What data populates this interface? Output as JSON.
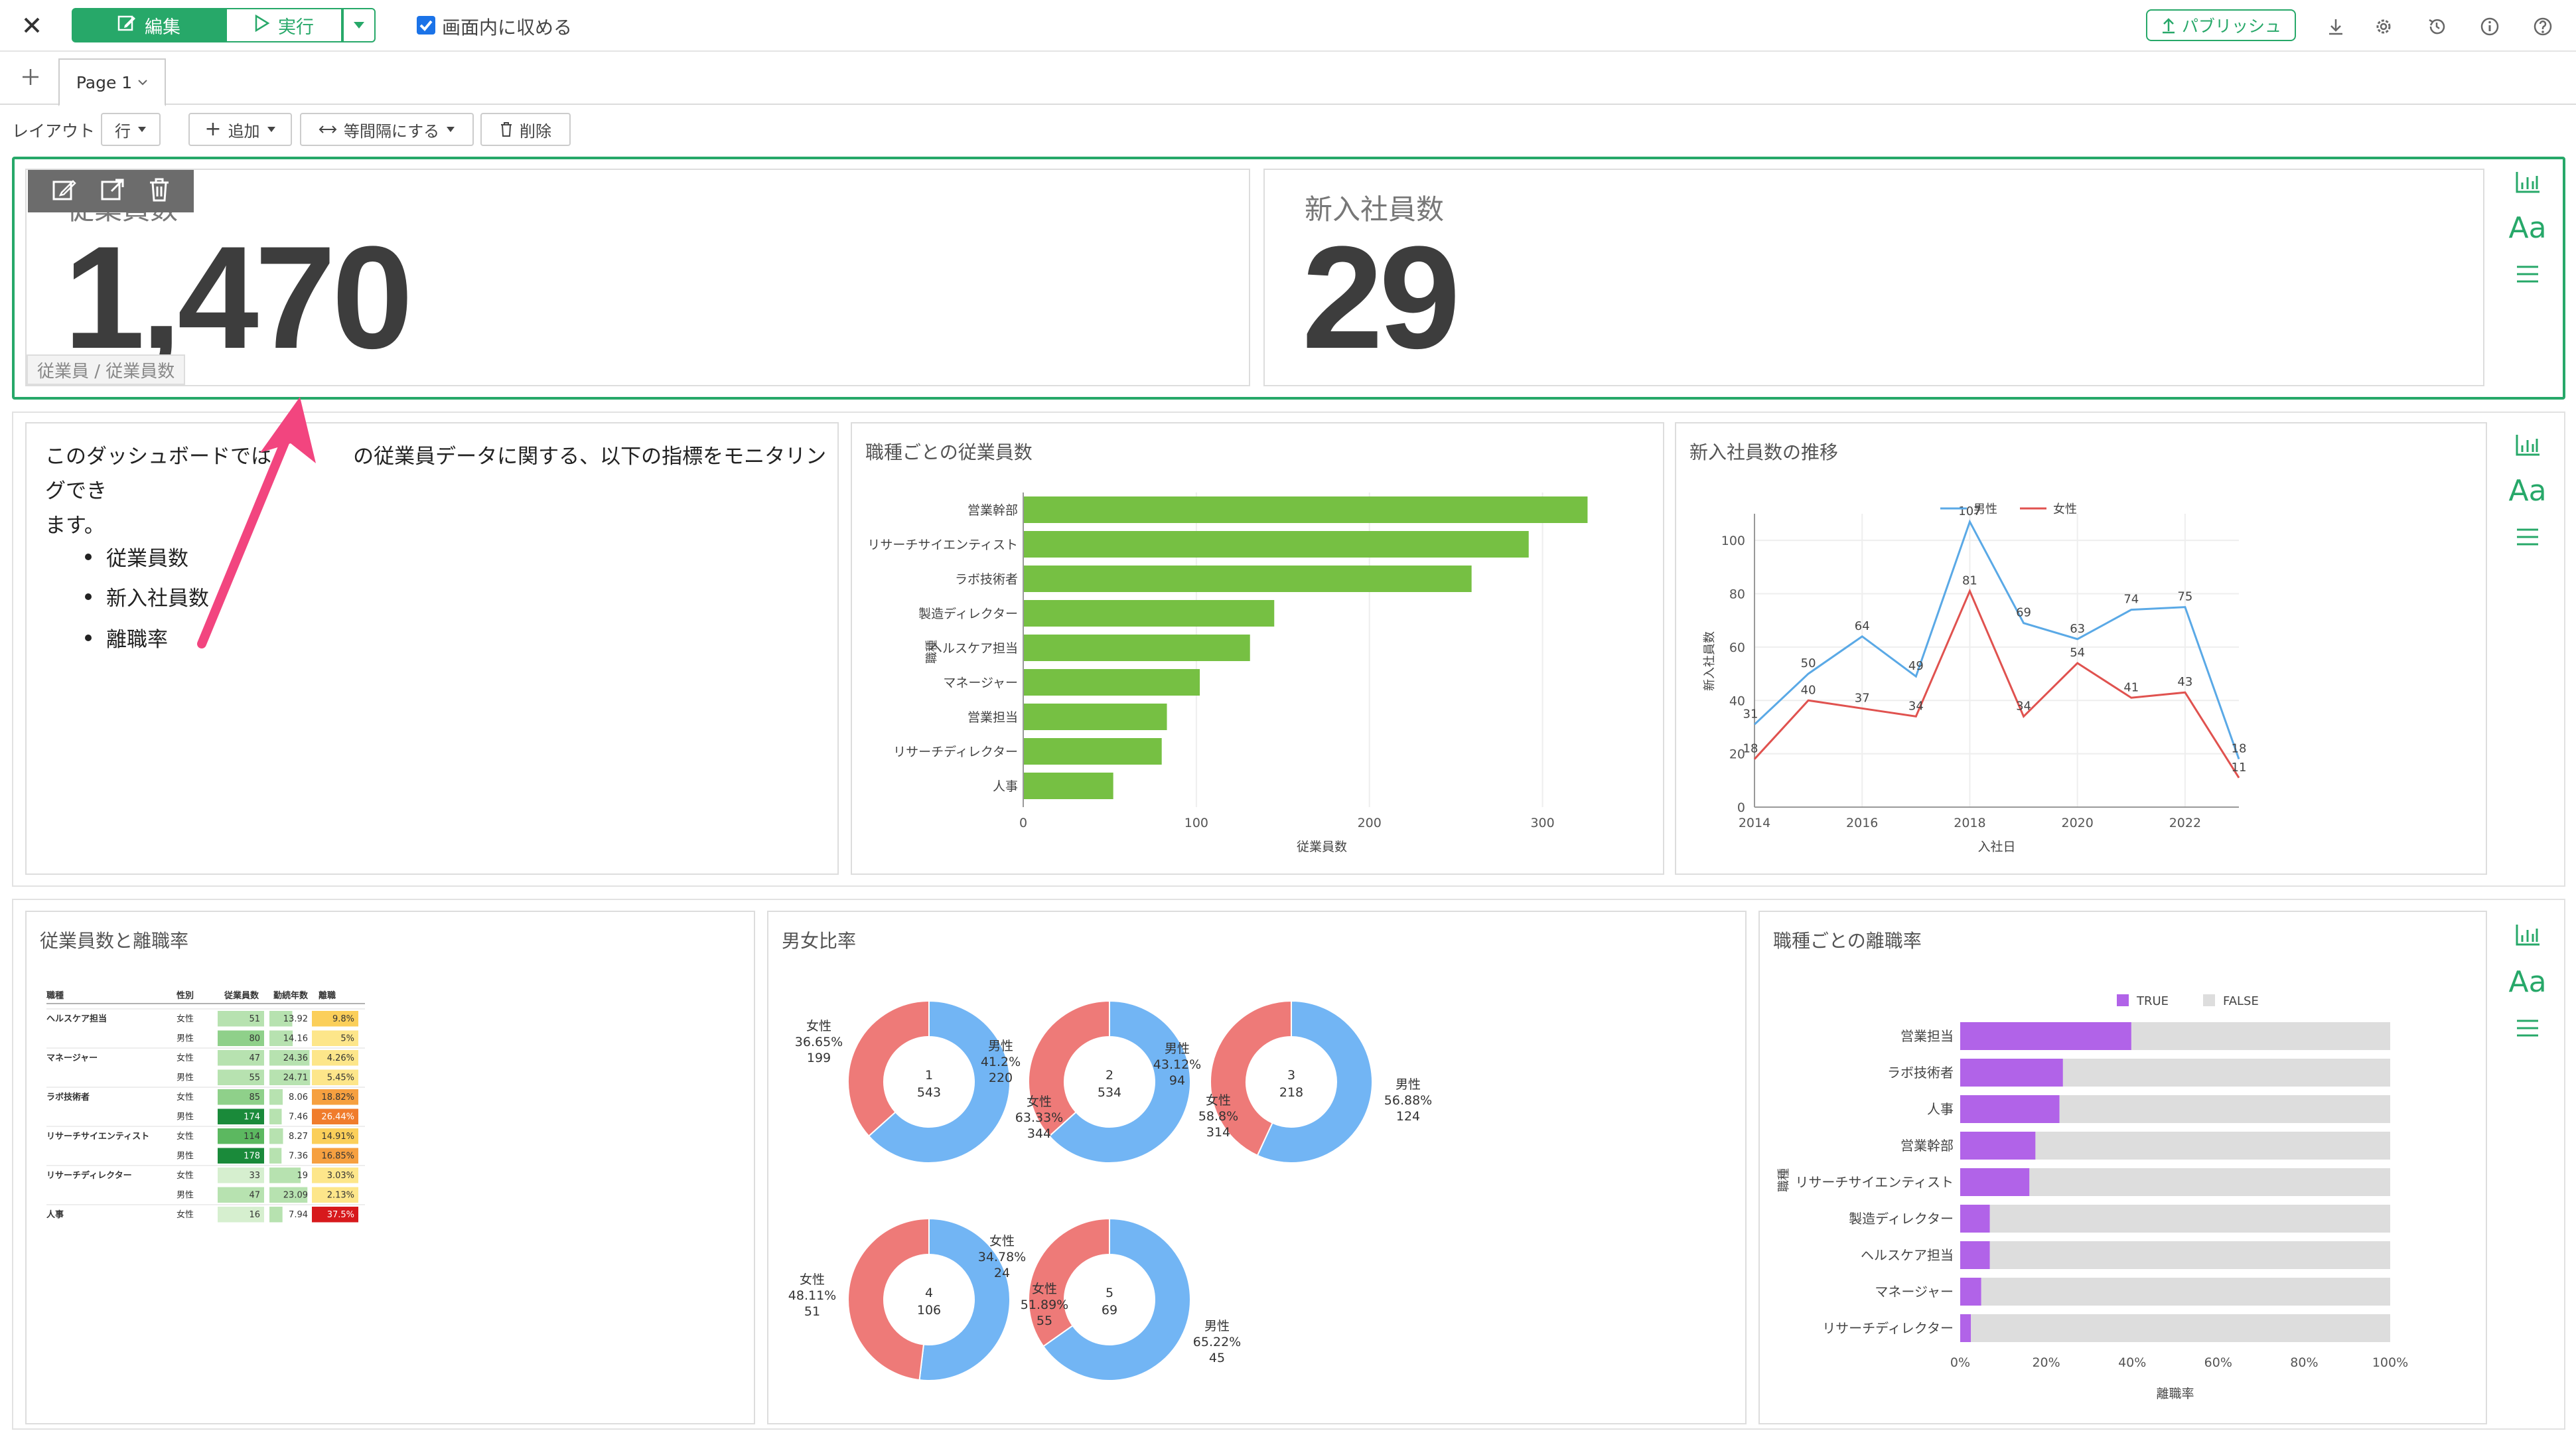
{
  "toolbar": {
    "edit_label": "編集",
    "run_label": "実行",
    "fit_label": "画面内に収める",
    "publish_label": "パブリッシュ"
  },
  "tabs": {
    "page": "Page 1"
  },
  "layout_bar": {
    "label": "レイアウト",
    "row_select": "行",
    "add": "追加",
    "equal_spacing": "等間隔にする",
    "delete": "削除"
  },
  "kpi1": {
    "title": "従業員数",
    "value": "1,470",
    "subtitle": "従業員 / 従業員数"
  },
  "kpi2": {
    "title": "新入社員数",
    "value": "29"
  },
  "side_icons": {
    "text_icon": "Aa"
  },
  "text_panel": {
    "paragraph_a": "このダッシュボードでは",
    "paragraph_b": "の従業員データに関する、以下の指標をモニタリングでき",
    "paragraph_c": "ます。",
    "bullets": [
      "従業員数",
      "新入社員数",
      "離職率"
    ]
  },
  "bar_panel": {
    "title": "職種ごとの従業員数",
    "chart_data": {
      "type": "bar",
      "orientation": "horizontal",
      "categories": [
        "営業幹部",
        "リサーチサイエンティスト",
        "ラボ技術者",
        "製造ディレクター",
        "ヘルスケア担当",
        "マネージャー",
        "営業担当",
        "リサーチディレクター",
        "人事"
      ],
      "values": [
        326,
        292,
        259,
        145,
        131,
        102,
        83,
        80,
        52
      ],
      "xlabel": "従業員数",
      "ylabel": "職種",
      "xticks": [
        0,
        100,
        200,
        300
      ],
      "xlim": [
        0,
        345
      ],
      "color": "#76c043"
    }
  },
  "line_panel": {
    "title": "新入社員数の推移",
    "chart_data": {
      "type": "line",
      "x": [
        2014,
        2015,
        2016,
        2017,
        2018,
        2019,
        2020,
        2021,
        2022,
        2023
      ],
      "series": [
        {
          "name": "男性",
          "color": "#5aa9e6",
          "values": [
            31,
            50,
            64,
            49,
            107,
            69,
            63,
            74,
            75,
            18
          ]
        },
        {
          "name": "女性",
          "color": "#e0524f",
          "values": [
            18,
            40,
            37,
            34,
            81,
            34,
            54,
            41,
            43,
            11
          ]
        }
      ],
      "xlabel": "入社日",
      "ylabel": "新入社員数",
      "xticks": [
        2014,
        2016,
        2018,
        2020,
        2022
      ],
      "yticks": [
        0,
        20,
        40,
        60,
        80,
        100
      ],
      "ylim": [
        0,
        110
      ],
      "legend": "top"
    }
  },
  "table_panel": {
    "title": "従業員数と離職率",
    "headers": [
      "職種",
      "性別",
      "従業員数",
      "勤続年数",
      "離職"
    ],
    "rows": [
      {
        "job": "ヘルスケア担当",
        "gender": "女性",
        "count": "51",
        "tenure": "13.92",
        "rate": "9.8%"
      },
      {
        "job": "",
        "gender": "男性",
        "count": "80",
        "tenure": "14.16",
        "rate": "5%"
      },
      {
        "job": "マネージャー",
        "gender": "女性",
        "count": "47",
        "tenure": "24.36",
        "rate": "4.26%"
      },
      {
        "job": "",
        "gender": "男性",
        "count": "55",
        "tenure": "24.71",
        "rate": "5.45%"
      },
      {
        "job": "ラボ技術者",
        "gender": "女性",
        "count": "85",
        "tenure": "8.06",
        "rate": "18.82%"
      },
      {
        "job": "",
        "gender": "男性",
        "count": "174",
        "tenure": "7.46",
        "rate": "26.44%"
      },
      {
        "job": "リサーチサイエンティスト",
        "gender": "女性",
        "count": "114",
        "tenure": "8.27",
        "rate": "14.91%"
      },
      {
        "job": "",
        "gender": "男性",
        "count": "178",
        "tenure": "7.36",
        "rate": "16.85%"
      },
      {
        "job": "リサーチディレクター",
        "gender": "女性",
        "count": "33",
        "tenure": "19",
        "rate": "3.03%"
      },
      {
        "job": "",
        "gender": "男性",
        "count": "47",
        "tenure": "23.09",
        "rate": "2.13%"
      },
      {
        "job": "人事",
        "gender": "女性",
        "count": "16",
        "tenure": "7.94",
        "rate": "37.5%"
      }
    ]
  },
  "donut_panel": {
    "title": "男女比率",
    "chart_data": {
      "type": "pie",
      "colors": {
        "女性": "#ee7a78",
        "男性": "#72b5f4"
      },
      "donuts": [
        {
          "label": "1",
          "total": "543",
          "female_pct": "36.65%",
          "female_n": "199",
          "male_pct": "41.2%",
          "male_n": "220",
          "female": 36.65
        },
        {
          "label": "2",
          "total": "534",
          "female_pct": "",
          "female_n": "",
          "male_pct": "43.12%",
          "male_n": "94",
          "female": 36.67,
          "female2_pct": "63.33%",
          "female2_n": "344"
        },
        {
          "label": "3",
          "total": "218",
          "female_pct": "58.8%",
          "female_n": "314",
          "male_pct": "56.88%",
          "male_n": "124",
          "female": 43.12
        },
        {
          "label": "4",
          "total": "106",
          "female_pct": "48.11%",
          "female_n": "51",
          "male_pct": "34.78%",
          "male_n": "24",
          "female": 48.11
        },
        {
          "label": "5",
          "total": "69",
          "female_pct": "51.89%",
          "female_n": "55",
          "male_pct": "65.22%",
          "male_n": "45",
          "female": 34.78
        }
      ],
      "female_name": "女性",
      "male_name": "男性"
    }
  },
  "stack_panel": {
    "title": "職種ごとの離職率",
    "chart_data": {
      "type": "bar",
      "orientation": "horizontal",
      "stacked": true,
      "categories": [
        "営業担当",
        "ラボ技術者",
        "人事",
        "営業幹部",
        "リサーチサイエンティスト",
        "製造ディレクター",
        "ヘルスケア担当",
        "マネージャー",
        "リサーチディレクター"
      ],
      "series": [
        {
          "name": "TRUE",
          "color": "#b163e8",
          "values": [
            39.8,
            23.9,
            23.1,
            17.5,
            16.1,
            6.9,
            6.9,
            4.9,
            2.5
          ]
        },
        {
          "name": "FALSE",
          "color": "#dddddd",
          "values": [
            60.2,
            76.1,
            76.9,
            82.5,
            83.9,
            93.1,
            93.1,
            95.1,
            97.5
          ]
        }
      ],
      "xlabel": "離職率",
      "ylabel": "職種",
      "xticks": [
        "0%",
        "20%",
        "40%",
        "60%",
        "80%",
        "100%"
      ],
      "legend": "top"
    }
  }
}
